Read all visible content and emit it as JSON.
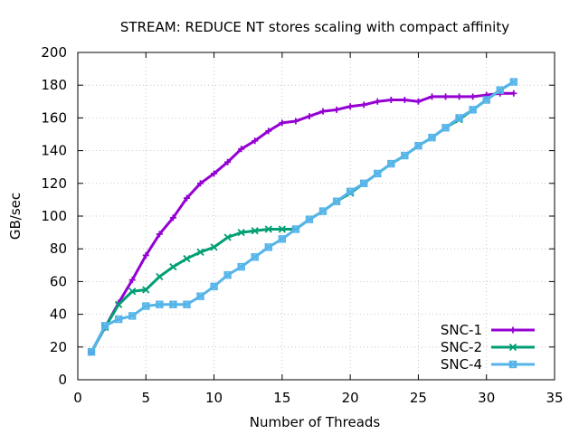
{
  "chart_data": {
    "type": "line",
    "title": "STREAM: REDUCE NT stores scaling with compact affinity",
    "xlabel": "Number of Threads",
    "ylabel": "GB/sec",
    "xlim": [
      0,
      35
    ],
    "ylim": [
      0,
      200
    ],
    "xticks": [
      0,
      5,
      10,
      15,
      20,
      25,
      30,
      35
    ],
    "yticks": [
      0,
      20,
      40,
      60,
      80,
      100,
      120,
      140,
      160,
      180,
      200
    ],
    "grid": true,
    "legend_position": "bottom-right",
    "x": [
      1,
      2,
      3,
      4,
      5,
      6,
      7,
      8,
      9,
      10,
      11,
      12,
      13,
      14,
      15,
      16,
      17,
      18,
      19,
      20,
      21,
      22,
      23,
      24,
      25,
      26,
      27,
      28,
      29,
      30,
      31,
      32
    ],
    "series": [
      {
        "name": "SNC-1",
        "color": "#9400d3",
        "marker": "plus",
        "values": [
          17,
          32,
          47,
          61,
          76,
          89,
          99,
          111,
          120,
          126,
          133,
          141,
          146,
          152,
          157,
          158,
          161,
          164,
          165,
          167,
          168,
          170,
          171,
          171,
          170,
          173,
          173,
          173,
          173,
          174,
          175,
          175
        ]
      },
      {
        "name": "SNC-2",
        "color": "#009e73",
        "marker": "cross",
        "values": [
          17,
          32,
          46,
          54,
          55,
          63,
          69,
          74,
          78,
          81,
          87,
          90,
          91,
          92,
          92,
          92,
          98,
          103,
          109,
          114,
          120,
          126,
          132,
          137,
          143,
          148,
          154,
          159,
          165,
          171,
          177,
          182
        ]
      },
      {
        "name": "SNC-4",
        "color": "#56b4e9",
        "marker": "box-cross",
        "values": [
          17,
          33,
          37,
          39,
          45,
          46,
          46,
          46,
          51,
          57,
          64,
          69,
          75,
          81,
          86,
          92,
          98,
          103,
          109,
          115,
          120,
          126,
          132,
          137,
          143,
          148,
          154,
          160,
          165,
          171,
          177,
          182
        ]
      }
    ]
  }
}
